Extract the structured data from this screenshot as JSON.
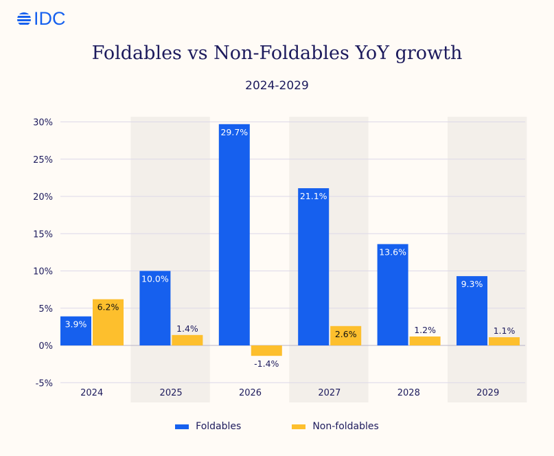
{
  "logo": {
    "text": "IDC",
    "color": "#1660ee"
  },
  "colors": {
    "foldables": "#1660ee",
    "non_foldables": "#fdbf2d",
    "band": "#f3efea",
    "grid": "#dcd8e8",
    "text": "#1c1a5c"
  },
  "chart_data": {
    "type": "bar",
    "title": "Foldables vs Non-Foldables YoY growth",
    "subtitle": "2024-2029",
    "categories": [
      "2024",
      "2025",
      "2026",
      "2027",
      "2028",
      "2029"
    ],
    "series": [
      {
        "name": "Foldables",
        "values": [
          3.9,
          10.0,
          29.7,
          21.1,
          13.6,
          9.3
        ],
        "labels": [
          "3.9%",
          "10.0%",
          "29.7%",
          "21.1%",
          "13.6%",
          "9.3%"
        ]
      },
      {
        "name": "Non-foldables",
        "values": [
          6.2,
          1.4,
          -1.4,
          2.6,
          1.2,
          1.1
        ],
        "labels": [
          "6.2%",
          "1.4%",
          "-1.4%",
          "2.6%",
          "1.2%",
          "1.1%"
        ]
      }
    ],
    "yticks": [
      30,
      25,
      20,
      15,
      10,
      5,
      0,
      -5
    ],
    "ytick_labels": [
      "30%",
      "25%",
      "20%",
      "15%",
      "10%",
      "5%",
      "0%",
      "-5%"
    ],
    "ylim": [
      -5,
      30
    ],
    "grid": true,
    "shaded_categories": [
      "2025",
      "2027",
      "2029"
    ],
    "legend_position": "bottom"
  }
}
